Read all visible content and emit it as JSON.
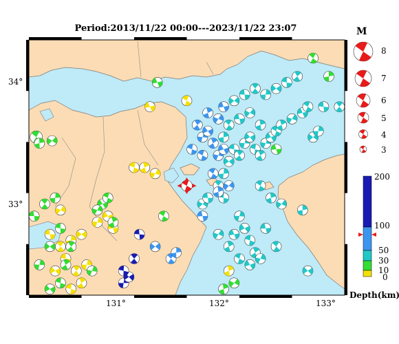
{
  "title": "Period:2013/11/22 00:00---2023/11/22 23:07",
  "lat_labels": [
    "34°",
    "33°"
  ],
  "lon_labels": [
    "131°",
    "132°",
    "133°"
  ],
  "magnitude_legend": {
    "heading": "M",
    "values": [
      "8",
      "7",
      "6",
      "5",
      "4",
      "3"
    ]
  },
  "depth_scale": {
    "unit": "Depth(km)",
    "ticks": [
      "200",
      "100",
      "50",
      "30",
      "10",
      "0"
    ],
    "colors": {
      "0-10": "#f5e100",
      "10-30": "#33dd33",
      "30-50": "#22c8c8",
      "50-100": "#3c96f0",
      "100-200": "#1a1ab4"
    }
  },
  "colors": {
    "sea": "#bfeaf7",
    "land": "#fbdcb4",
    "highlight": "#e81b1b"
  },
  "chart_data": {
    "type": "map",
    "lon_range": [
      130.2,
      133.2
    ],
    "lat_range": [
      32.3,
      34.4
    ],
    "events_by_color": {
      "yellow": [
        [
          130.4,
          32.8,
          1
        ],
        [
          130.5,
          32.7,
          1
        ],
        [
          130.6,
          32.75,
          1
        ],
        [
          130.7,
          32.8,
          1
        ],
        [
          130.55,
          32.6,
          1
        ],
        [
          130.65,
          32.5,
          1
        ],
        [
          130.75,
          32.55,
          1
        ],
        [
          130.45,
          32.5,
          1
        ],
        [
          130.6,
          32.35,
          1
        ],
        [
          130.7,
          32.4,
          1
        ],
        [
          130.85,
          32.9,
          1
        ],
        [
          130.95,
          32.95,
          1
        ],
        [
          131.2,
          33.35,
          1
        ],
        [
          131.3,
          33.35,
          1
        ],
        [
          131.4,
          33.3,
          1
        ],
        [
          131.35,
          33.85,
          1
        ],
        [
          131.7,
          33.9,
          1
        ],
        [
          132.1,
          32.5,
          1
        ],
        [
          130.5,
          33.0,
          1
        ],
        [
          131.0,
          32.85,
          1
        ]
      ],
      "green": [
        [
          130.27,
          33.6,
          2
        ],
        [
          130.3,
          33.55,
          1
        ],
        [
          130.42,
          33.57,
          1
        ],
        [
          130.25,
          32.95,
          1
        ],
        [
          130.35,
          33.05,
          1
        ],
        [
          130.45,
          33.1,
          1
        ],
        [
          130.4,
          32.7,
          1
        ],
        [
          130.5,
          32.85,
          1
        ],
        [
          130.6,
          32.7,
          1
        ],
        [
          130.3,
          32.55,
          1
        ],
        [
          130.4,
          32.35,
          1
        ],
        [
          130.5,
          32.4,
          1
        ],
        [
          130.55,
          32.55,
          1
        ],
        [
          130.8,
          32.5,
          1
        ],
        [
          130.9,
          33.05,
          1
        ],
        [
          130.95,
          33.1,
          1
        ],
        [
          131.0,
          32.9,
          1
        ],
        [
          130.85,
          33.0,
          1
        ],
        [
          131.42,
          34.05,
          1
        ],
        [
          131.48,
          32.95,
          1
        ],
        [
          132.05,
          32.35,
          1
        ],
        [
          132.15,
          32.4,
          1
        ],
        [
          132.55,
          33.5,
          1
        ],
        [
          132.9,
          34.25,
          1
        ],
        [
          133.05,
          34.1,
          1
        ]
      ],
      "cyan": [
        [
          131.85,
          33.05,
          1
        ],
        [
          131.9,
          33.1,
          1
        ],
        [
          132.0,
          33.2,
          1
        ],
        [
          132.05,
          33.3,
          1
        ],
        [
          132.1,
          33.4,
          1
        ],
        [
          132.15,
          33.5,
          1
        ],
        [
          132.2,
          33.45,
          1
        ],
        [
          132.25,
          33.55,
          1
        ],
        [
          132.3,
          33.6,
          1
        ],
        [
          132.35,
          33.5,
          1
        ],
        [
          132.4,
          33.45,
          1
        ],
        [
          132.45,
          33.55,
          1
        ],
        [
          132.5,
          33.6,
          1
        ],
        [
          132.55,
          33.65,
          1
        ],
        [
          132.6,
          33.7,
          1
        ],
        [
          132.7,
          33.75,
          1
        ],
        [
          132.8,
          33.8,
          1
        ],
        [
          132.85,
          33.85,
          1
        ],
        [
          132.4,
          33.7,
          1
        ],
        [
          132.3,
          33.8,
          1
        ],
        [
          132.2,
          33.75,
          1
        ],
        [
          132.1,
          33.7,
          1
        ],
        [
          132.05,
          33.6,
          1
        ],
        [
          132.15,
          33.9,
          1
        ],
        [
          132.25,
          33.95,
          1
        ],
        [
          132.35,
          34.0,
          1
        ],
        [
          132.45,
          33.95,
          1
        ],
        [
          132.55,
          34.0,
          1
        ],
        [
          132.65,
          34.05,
          1
        ],
        [
          132.75,
          34.1,
          1
        ],
        [
          132.2,
          32.95,
          1
        ],
        [
          132.25,
          32.85,
          1
        ],
        [
          132.3,
          32.75,
          1
        ],
        [
          132.35,
          32.65,
          1
        ],
        [
          132.4,
          32.6,
          1
        ],
        [
          132.3,
          32.55,
          1
        ],
        [
          132.2,
          32.6,
          1
        ],
        [
          132.1,
          32.7,
          1
        ],
        [
          132.0,
          32.8,
          1
        ],
        [
          132.15,
          32.8,
          1
        ],
        [
          132.4,
          33.2,
          1
        ],
        [
          132.5,
          33.1,
          1
        ],
        [
          132.6,
          33.05,
          1
        ],
        [
          132.45,
          32.85,
          1
        ],
        [
          132.55,
          32.7,
          1
        ],
        [
          132.8,
          33.0,
          1
        ],
        [
          132.9,
          33.6,
          1
        ],
        [
          133.0,
          33.85,
          1
        ],
        [
          133.15,
          33.85,
          1
        ],
        [
          132.95,
          33.65,
          1
        ],
        [
          132.85,
          32.5,
          1
        ],
        [
          132.05,
          33.1,
          1
        ]
      ],
      "blue": [
        [
          131.8,
          33.7,
          1
        ],
        [
          131.85,
          33.6,
          1
        ],
        [
          131.9,
          33.65,
          1
        ],
        [
          131.75,
          33.5,
          1
        ],
        [
          131.95,
          33.55,
          1
        ],
        [
          132.0,
          33.45,
          1
        ],
        [
          132.05,
          33.5,
          1
        ],
        [
          131.85,
          33.45,
          1
        ],
        [
          131.9,
          33.8,
          1
        ],
        [
          132.0,
          33.75,
          1
        ],
        [
          132.05,
          33.85,
          1
        ],
        [
          131.95,
          33.3,
          1
        ],
        [
          132.0,
          33.15,
          1
        ],
        [
          132.1,
          33.2,
          1
        ],
        [
          131.85,
          32.95,
          1
        ],
        [
          131.55,
          32.6,
          1
        ],
        [
          131.6,
          32.65,
          1
        ],
        [
          131.4,
          32.7,
          1
        ]
      ],
      "navy": [
        [
          131.25,
          32.8,
          1
        ],
        [
          131.2,
          32.6,
          1
        ],
        [
          131.1,
          32.4,
          1
        ],
        [
          131.15,
          32.45,
          1
        ],
        [
          131.1,
          32.5,
          1
        ]
      ]
    },
    "highlight_event": {
      "lon": 131.7,
      "lat": 33.2,
      "size": 2
    }
  }
}
